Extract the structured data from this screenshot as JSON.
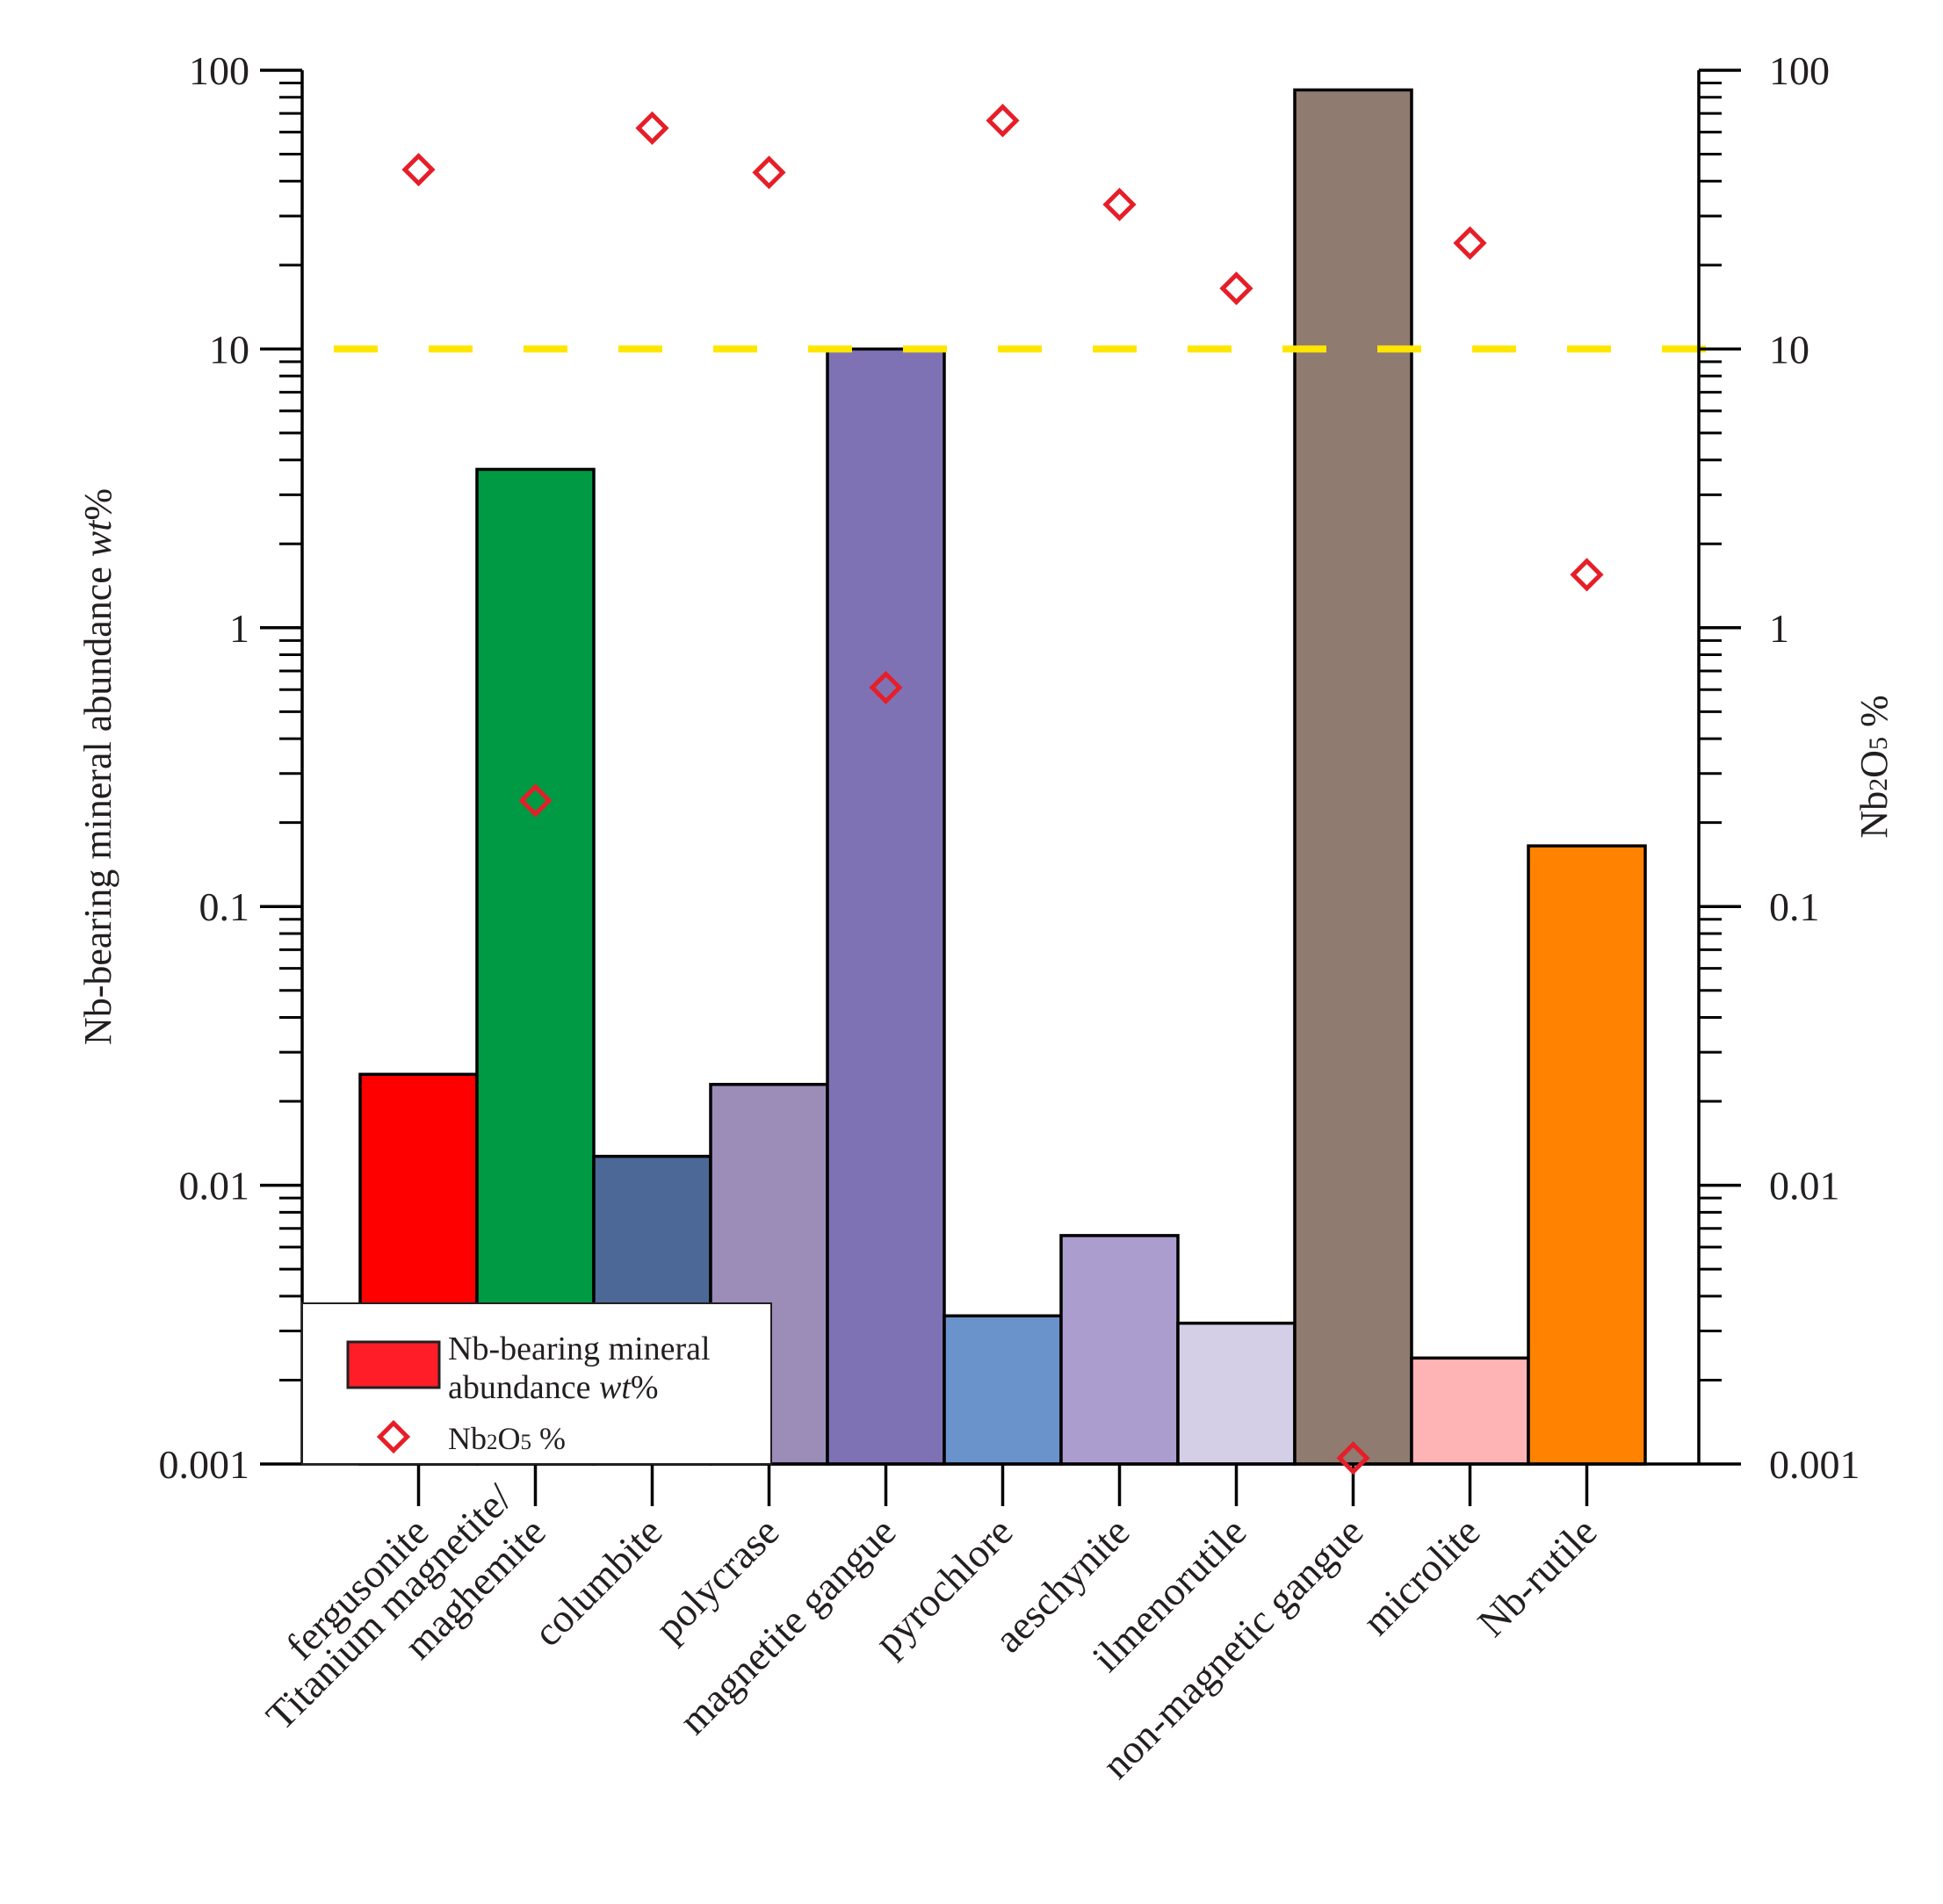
{
  "chart_data": {
    "type": "bar",
    "y_scale": "log",
    "ylim": [
      0.001,
      100
    ],
    "ylabel_left": {
      "text": "Nb-bearing mineral abundance ",
      "italic": "wt",
      "suffix": "%"
    },
    "ylabel_right": {
      "prefix": "Nb",
      "sub1": "2",
      "mid": "O",
      "sub2": "5",
      "suffix": " %"
    },
    "y_tick_labels": [
      "100",
      "10",
      "1",
      "0.1",
      "0.01",
      "0.001"
    ],
    "y_tick_values": [
      100,
      10,
      1,
      0.1,
      0.01,
      0.001
    ],
    "reference_line": {
      "value": 10,
      "color": "#ffe600",
      "style": "dashed"
    },
    "categories": [
      {
        "lines": [
          "fergusonite"
        ]
      },
      {
        "lines": [
          "Titanium magnetite/",
          "maghemite"
        ]
      },
      {
        "lines": [
          "columbite"
        ]
      },
      {
        "lines": [
          "polycrase"
        ]
      },
      {
        "lines": [
          "magnetite gangue"
        ]
      },
      {
        "lines": [
          "pyrochlore"
        ]
      },
      {
        "lines": [
          "aeschynite"
        ]
      },
      {
        "lines": [
          "ilmenorutile"
        ]
      },
      {
        "lines": [
          "non-magnetic gangue"
        ]
      },
      {
        "lines": [
          "microlite"
        ]
      },
      {
        "lines": [
          "Nb-rutile"
        ]
      }
    ],
    "series": [
      {
        "name": "Nb-bearing mineral abundance wt%",
        "kind": "bar",
        "values": [
          0.025,
          3.7,
          0.0127,
          0.023,
          10,
          0.0034,
          0.0066,
          0.0032,
          85,
          0.0024,
          0.165
        ],
        "colors": [
          "#ff0000",
          "#009944",
          "#4b6896",
          "#9c8cb8",
          "#7f72b4",
          "#6a93cb",
          "#ab9ecf",
          "#d4cfe6",
          "#8f7b70",
          "#feb3b5",
          "#ff8300"
        ]
      },
      {
        "name": "Nb2O5 %",
        "kind": "scatter",
        "marker": "diamond-open",
        "color": "#e61e28",
        "values": [
          44,
          0.24,
          62,
          43,
          0.61,
          66,
          33,
          16.5,
          0.00105,
          24,
          1.55
        ]
      }
    ],
    "legend": {
      "position": "bottom-left",
      "bar_label_line1": "Nb-bearing mineral",
      "bar_label_line2": "abundance ",
      "bar_label_italic": "wt",
      "bar_label_suffix": "%",
      "marker_prefix": "Nb",
      "marker_sub1": "2",
      "marker_mid": "O",
      "marker_sub2": "5",
      "marker_suffix": " %"
    }
  }
}
